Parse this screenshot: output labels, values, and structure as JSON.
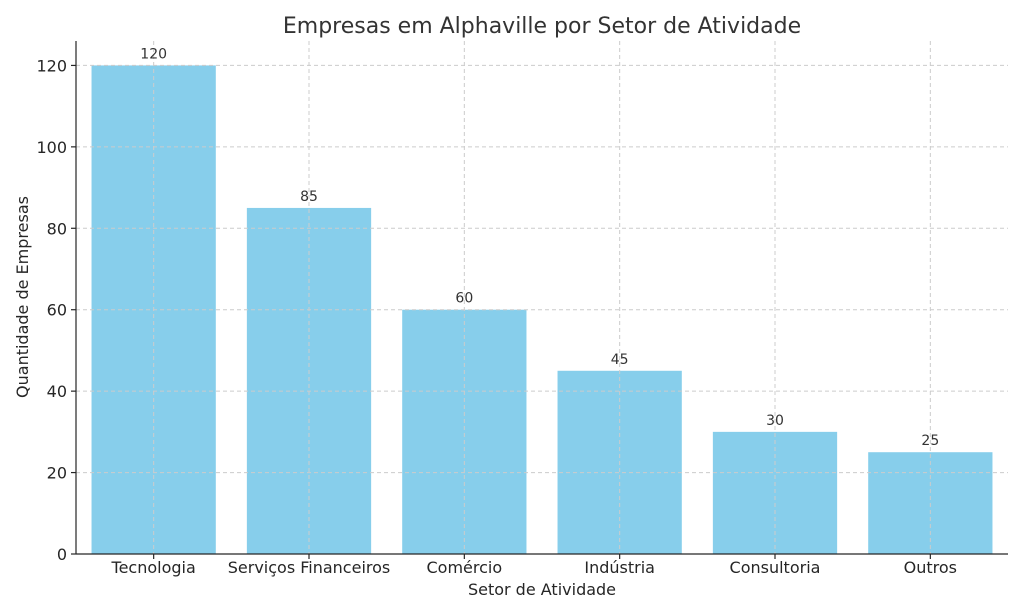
{
  "chart_data": {
    "type": "bar",
    "title": "Empresas em Alphaville por Setor de Atividade",
    "xlabel": "Setor de Atividade",
    "ylabel": "Quantidade de Empresas",
    "categories": [
      "Tecnologia",
      "Serviços Financeiros",
      "Comércio",
      "Indústria",
      "Consultoria",
      "Outros"
    ],
    "values": [
      120,
      85,
      60,
      45,
      30,
      25
    ],
    "ylim": [
      0,
      126
    ],
    "yticks": [
      0,
      20,
      40,
      60,
      80,
      100,
      120
    ],
    "grid": true,
    "bar_color": "#87ceeb",
    "data_labels": true
  }
}
